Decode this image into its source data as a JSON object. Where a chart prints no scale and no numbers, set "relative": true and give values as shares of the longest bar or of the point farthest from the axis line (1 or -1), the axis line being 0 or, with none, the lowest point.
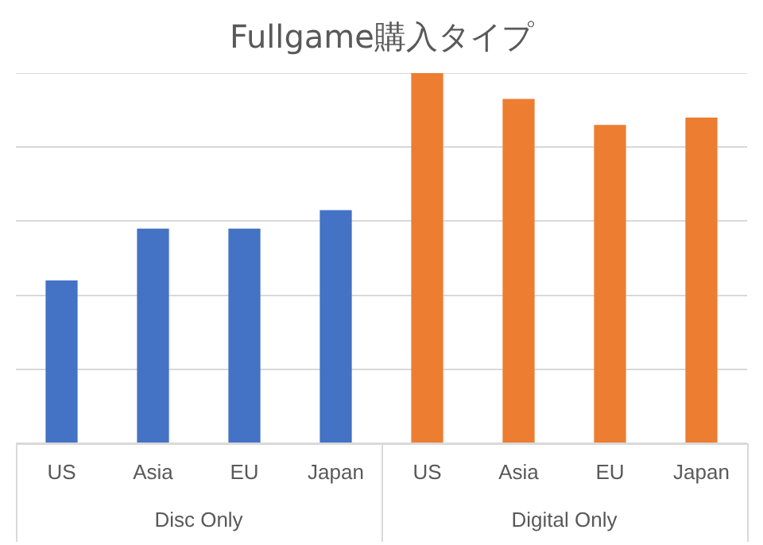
{
  "chart_data": {
    "type": "bar",
    "title": "Fullgame購入タイプ",
    "relative": true,
    "grid": "y",
    "legend": false,
    "categories": [
      "US",
      "Asia",
      "EU",
      "Japan",
      "US",
      "Asia",
      "EU",
      "Japan"
    ],
    "values": [
      0.44,
      0.58,
      0.58,
      0.63,
      1,
      0.93,
      0.86,
      0.88
    ],
    "colors": [
      "#4472c4",
      "#4472c4",
      "#4472c4",
      "#4472c4",
      "#ed7d31",
      "#ed7d31",
      "#ed7d31",
      "#ed7d31"
    ],
    "annotations": [
      "Disc Only",
      "Digital Only"
    ]
  }
}
